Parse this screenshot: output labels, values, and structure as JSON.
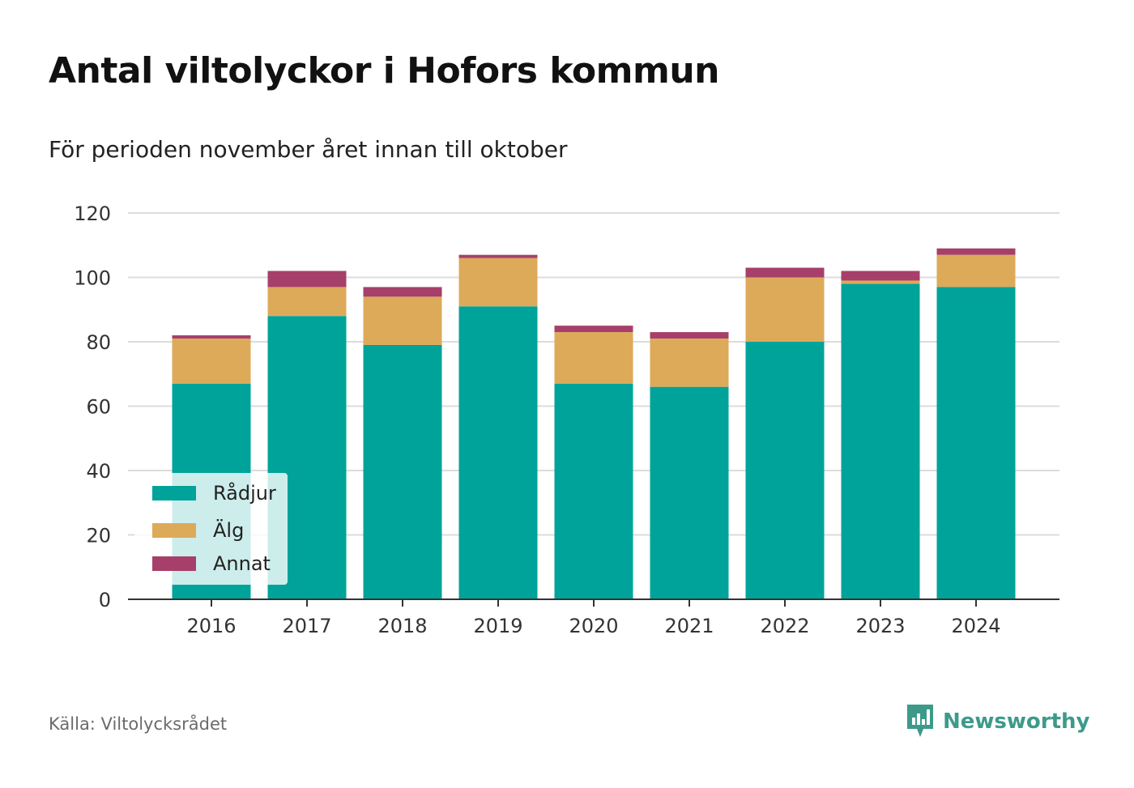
{
  "header": {
    "title": "Antal viltolyckor i Hofors kommun",
    "subtitle": "För perioden november året innan till oktober"
  },
  "footer": {
    "source": "Källa: Viltolycksrådet",
    "brand": "Newsworthy",
    "brand_icon": "newsworthy-logo-icon",
    "brand_color": "#3d9a8a"
  },
  "chart_data": {
    "type": "bar",
    "stacked": true,
    "categories": [
      "2016",
      "2017",
      "2018",
      "2019",
      "2020",
      "2021",
      "2022",
      "2023",
      "2024"
    ],
    "series": [
      {
        "name": "Rådjur",
        "color": "#00a39a",
        "values": [
          67,
          88,
          79,
          91,
          67,
          66,
          80,
          98,
          97
        ]
      },
      {
        "name": "Älg",
        "color": "#ddaa5a",
        "values": [
          14,
          9,
          15,
          15,
          16,
          15,
          20,
          1,
          10
        ]
      },
      {
        "name": "Annat",
        "color": "#a6406a",
        "values": [
          1,
          5,
          3,
          1,
          2,
          2,
          3,
          3,
          2
        ]
      }
    ],
    "ylim": [
      0,
      120
    ],
    "yticks": [
      0,
      20,
      40,
      60,
      80,
      100,
      120
    ],
    "grid": true,
    "legend": "bottom-left",
    "xlabel": "",
    "ylabel": ""
  }
}
